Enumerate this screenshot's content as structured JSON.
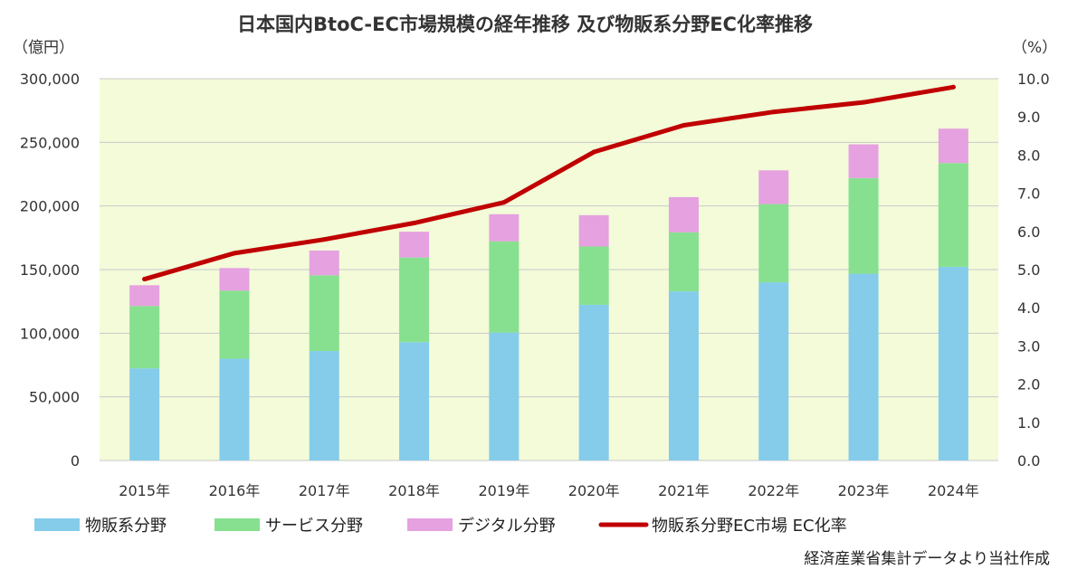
{
  "header": {
    "title": "日本国内BtoC-EC市場規模の経年推移 及び物販系分野EC化率推移",
    "left_unit": "（億円）",
    "right_unit": "（%）"
  },
  "source_note": "経済産業省集計データより当社作成",
  "colors": {
    "plot_bg": "#f3fbd9",
    "grid": "#c9c9c9",
    "goods": "#85cceb",
    "service": "#87e08f",
    "digital": "#e5a1e0",
    "line": "#c00000"
  },
  "chart_data": {
    "type": "bar",
    "stacked": true,
    "categories": [
      "2015年",
      "2016年",
      "2017年",
      "2018年",
      "2019年",
      "2020年",
      "2021年",
      "2022年",
      "2023年",
      "2024年"
    ],
    "series": [
      {
        "name": "物販系分野",
        "values": [
          72400,
          80000,
          86000,
          92992,
          100515,
          122333,
          132865,
          139997,
          146760,
          152194
        ]
      },
      {
        "name": "サービス分野",
        "values": [
          49000,
          53500,
          59500,
          66500,
          71700,
          45832,
          46424,
          61477,
          75169,
          81522
        ]
      },
      {
        "name": "デジタル分野",
        "values": [
          16300,
          17700,
          19500,
          20300,
          21300,
          24614,
          27661,
          26506,
          26506,
          27046
        ]
      }
    ],
    "line_series": {
      "name": "物販系分野EC市場 EC化率",
      "values": [
        4.75,
        5.43,
        5.79,
        6.22,
        6.76,
        8.08,
        8.78,
        9.13,
        9.38,
        9.78
      ]
    },
    "y_left": {
      "ylim": [
        0,
        300000
      ],
      "ticks": [
        "0",
        "50,000",
        "100,000",
        "150,000",
        "200,000",
        "250,000",
        "300,000"
      ]
    },
    "y_right": {
      "ylim": [
        0,
        10
      ],
      "ticks": [
        "0.0",
        "1.0",
        "2.0",
        "3.0",
        "4.0",
        "5.0",
        "6.0",
        "7.0",
        "8.0",
        "9.0",
        "10.0"
      ]
    },
    "grid": true,
    "legend_position": "bottom"
  }
}
